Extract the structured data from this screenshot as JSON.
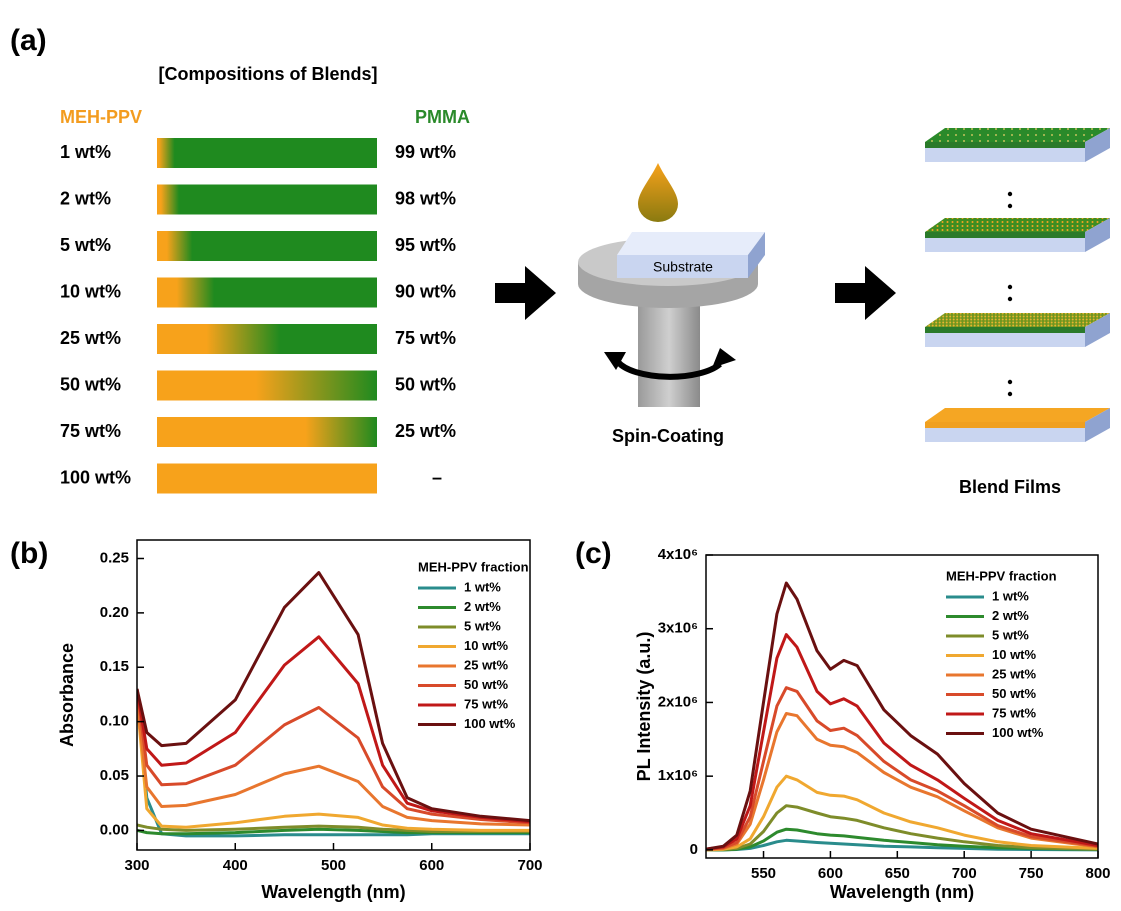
{
  "panel_a": {
    "label": "(a)",
    "title": "[Compositions of Blends]",
    "left_header": "MEH-PPV",
    "right_header": "PMMA",
    "rows": [
      {
        "left": "1 wt%",
        "right": "99 wt%"
      },
      {
        "left": "2 wt%",
        "right": "98 wt%"
      },
      {
        "left": "5 wt%",
        "right": "95 wt%"
      },
      {
        "left": "10 wt%",
        "right": "90 wt%"
      },
      {
        "left": "25 wt%",
        "right": "75 wt%"
      },
      {
        "left": "50 wt%",
        "right": "50 wt%"
      },
      {
        "left": "75 wt%",
        "right": "25 wt%"
      },
      {
        "left": "100 wt%",
        "right": "–"
      }
    ],
    "substrate_label": "Substrate",
    "spin_label": "Spin-Coating",
    "films_label": "Blend Films"
  },
  "chart_data": [
    {
      "type": "line",
      "panel_label": "(b)",
      "xlabel": "Wavelength (nm)",
      "ylabel": "Absorbance",
      "legend_title": "MEH-PPV fraction",
      "x": [
        300,
        310,
        325,
        350,
        400,
        450,
        485,
        525,
        550,
        575,
        600,
        650,
        700
      ],
      "xlim": [
        300,
        700
      ],
      "xticks": [
        300,
        400,
        500,
        600,
        700
      ],
      "ylim": [
        -0.018,
        0.267
      ],
      "yticks": [
        {
          "value": 0,
          "label": "0.00"
        },
        {
          "value": 0.05,
          "label": "0.05"
        },
        {
          "value": 0.1,
          "label": "0.10"
        },
        {
          "value": 0.15,
          "label": "0.15"
        },
        {
          "value": 0.2,
          "label": "0.20"
        },
        {
          "value": 0.25,
          "label": "0.25"
        }
      ],
      "series": [
        {
          "name": "1 wt%",
          "color": "#2a8c8c",
          "values": [
            0.12,
            0.03,
            -0.003,
            -0.005,
            -0.005,
            -0.004,
            -0.004,
            -0.004,
            -0.004,
            -0.004,
            -0.003,
            -0.003,
            -0.003
          ]
        },
        {
          "name": "2 wt%",
          "color": "#2d8a2d",
          "values": [
            0.0,
            -0.002,
            -0.003,
            -0.003,
            -0.002,
            0.0,
            0.001,
            0.0,
            -0.001,
            -0.002,
            -0.002,
            -0.002,
            -0.002
          ]
        },
        {
          "name": "5 wt%",
          "color": "#7e8c2a",
          "values": [
            0.005,
            0.003,
            0.001,
            0.0,
            0.001,
            0.003,
            0.004,
            0.003,
            0.001,
            0.0,
            -0.001,
            -0.001,
            -0.001
          ]
        },
        {
          "name": "10 wt%",
          "color": "#f0a830",
          "values": [
            0.12,
            0.02,
            0.004,
            0.003,
            0.007,
            0.013,
            0.015,
            0.012,
            0.005,
            0.002,
            0.001,
            0.0,
            0.0
          ]
        },
        {
          "name": "25 wt%",
          "color": "#e8762e",
          "values": [
            0.12,
            0.04,
            0.022,
            0.023,
            0.033,
            0.052,
            0.059,
            0.045,
            0.022,
            0.012,
            0.009,
            0.006,
            0.005
          ]
        },
        {
          "name": "50 wt%",
          "color": "#d84a2a",
          "values": [
            0.13,
            0.06,
            0.042,
            0.043,
            0.06,
            0.097,
            0.113,
            0.085,
            0.04,
            0.02,
            0.015,
            0.01,
            0.007
          ]
        },
        {
          "name": "75 wt%",
          "color": "#c01818",
          "values": [
            0.13,
            0.075,
            0.06,
            0.062,
            0.09,
            0.152,
            0.178,
            0.135,
            0.06,
            0.025,
            0.018,
            0.012,
            0.008
          ]
        },
        {
          "name": "100 wt%",
          "color": "#6a1010",
          "values": [
            0.13,
            0.09,
            0.078,
            0.08,
            0.12,
            0.205,
            0.237,
            0.18,
            0.08,
            0.03,
            0.02,
            0.013,
            0.009
          ]
        }
      ]
    },
    {
      "type": "line",
      "panel_label": "(c)",
      "xlabel": "Wavelength (nm)",
      "ylabel": "PL Intensity (a.u.)",
      "legend_title": "MEH-PPV fraction",
      "x": [
        507,
        520,
        530,
        540,
        550,
        560,
        567,
        575,
        590,
        600,
        610,
        620,
        640,
        660,
        680,
        700,
        725,
        750,
        800
      ],
      "xlim": [
        507,
        800
      ],
      "xticks": [
        550,
        600,
        650,
        700,
        750,
        800
      ],
      "ylim": [
        -110000,
        4000000
      ],
      "yticks": [
        0,
        {
          "value": 1000000,
          "label": "1x10⁶"
        },
        {
          "value": 2000000,
          "label": "2x10⁶"
        },
        {
          "value": 3000000,
          "label": "3x10⁶"
        },
        {
          "value": 4000000,
          "label": "4x10⁶"
        }
      ],
      "series": [
        {
          "name": "1 wt%",
          "color": "#2a8c8c",
          "values": [
            0,
            0,
            5000,
            20000,
            60000,
            110000,
            130000,
            120000,
            100000,
            90000,
            80000,
            70000,
            50000,
            40000,
            30000,
            20000,
            10000,
            5000,
            0
          ]
        },
        {
          "name": "2 wt%",
          "color": "#2d8a2d",
          "values": [
            0,
            0,
            10000,
            40000,
            120000,
            240000,
            280000,
            270000,
            220000,
            200000,
            190000,
            170000,
            130000,
            100000,
            70000,
            50000,
            30000,
            20000,
            5000
          ]
        },
        {
          "name": "5 wt%",
          "color": "#7e8c2a",
          "values": [
            0,
            5000,
            20000,
            80000,
            250000,
            500000,
            600000,
            580000,
            500000,
            450000,
            430000,
            400000,
            300000,
            220000,
            160000,
            110000,
            60000,
            30000,
            10000
          ]
        },
        {
          "name": "10 wt%",
          "color": "#f0a830",
          "values": [
            0,
            10000,
            40000,
            150000,
            450000,
            850000,
            1000000,
            950000,
            780000,
            740000,
            730000,
            680000,
            500000,
            380000,
            300000,
            200000,
            110000,
            60000,
            20000
          ]
        },
        {
          "name": "25 wt%",
          "color": "#e8762e",
          "values": [
            5000,
            20000,
            80000,
            350000,
            950000,
            1600000,
            1850000,
            1820000,
            1500000,
            1420000,
            1400000,
            1320000,
            1050000,
            850000,
            720000,
            530000,
            300000,
            160000,
            40000
          ]
        },
        {
          "name": "50 wt%",
          "color": "#d84a2a",
          "values": [
            10000,
            30000,
            100000,
            450000,
            1200000,
            1950000,
            2200000,
            2150000,
            1750000,
            1620000,
            1650000,
            1550000,
            1200000,
            950000,
            800000,
            600000,
            330000,
            180000,
            50000
          ]
        },
        {
          "name": "75 wt%",
          "color": "#c01818",
          "values": [
            10000,
            40000,
            150000,
            600000,
            1600000,
            2600000,
            2920000,
            2750000,
            2150000,
            1980000,
            2050000,
            1950000,
            1450000,
            1150000,
            950000,
            700000,
            400000,
            220000,
            60000
          ]
        },
        {
          "name": "100 wt%",
          "color": "#6a1010",
          "values": [
            10000,
            50000,
            200000,
            800000,
            2000000,
            3200000,
            3620000,
            3400000,
            2700000,
            2450000,
            2570000,
            2500000,
            1900000,
            1550000,
            1300000,
            900000,
            500000,
            280000,
            80000
          ]
        }
      ]
    }
  ]
}
